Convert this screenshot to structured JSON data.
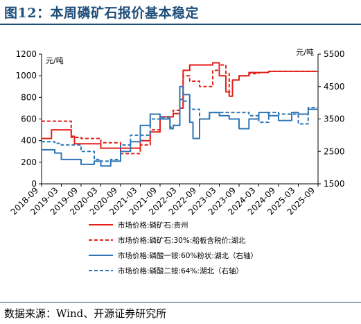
{
  "title": "图12：本周磷矿石报价基本稳定",
  "source": "数据来源：Wind、开源证券研究所",
  "chart_data": {
    "type": "line",
    "x_tick_labels": [
      "2018-09",
      "2019-03",
      "2019-09",
      "2020-03",
      "2020-09",
      "2021-03",
      "2021-09",
      "2022-03",
      "2022-09",
      "2023-03",
      "2023-09",
      "2024-03",
      "2024-09",
      "2025-03",
      "2025-09"
    ],
    "x_range": [
      "2018-09",
      "2025-09"
    ],
    "left_axis": {
      "unit": "元/吨",
      "ylim": [
        0,
        1200
      ],
      "ticks": [
        0,
        200,
        400,
        600,
        800,
        1000,
        1200
      ]
    },
    "right_axis": {
      "unit": "元/吨",
      "ylim": [
        1500,
        5500
      ],
      "ticks": [
        1500,
        2500,
        3500,
        4500,
        5500
      ]
    },
    "legend_position": "bottom",
    "series": [
      {
        "name": "市场价格:磷矿石:贵州",
        "axis": "left",
        "style": "solid",
        "color": "#e32119",
        "x": [
          "2018-09",
          "2018-12",
          "2019-06",
          "2019-07",
          "2020-03",
          "2020-09",
          "2020-12",
          "2021-03",
          "2021-06",
          "2021-09",
          "2021-12",
          "2022-01",
          "2022-03",
          "2022-04",
          "2022-06",
          "2022-09",
          "2022-12",
          "2023-01",
          "2023-03",
          "2023-05",
          "2023-06",
          "2023-07",
          "2023-09",
          "2023-12",
          "2024-03",
          "2024-06",
          "2024-09",
          "2025-03",
          "2025-09"
        ],
        "y": [
          420,
          500,
          440,
          370,
          330,
          330,
          330,
          400,
          480,
          620,
          620,
          650,
          700,
          1050,
          1100,
          1100,
          1100,
          1120,
          1000,
          850,
          810,
          960,
          1000,
          1030,
          1030,
          1040,
          1040,
          1040,
          1040
        ]
      },
      {
        "name": "市场价格:磷矿石:30%:船板含税价:湖北",
        "axis": "left",
        "style": "dashed",
        "color": "#e32119",
        "x": [
          "2018-09",
          "2019-03",
          "2019-06",
          "2019-09",
          "2020-03",
          "2020-09",
          "2021-01",
          "2021-03",
          "2021-06",
          "2021-09",
          "2021-12",
          "2022-01",
          "2022-03",
          "2022-04",
          "2022-06",
          "2022-09",
          "2022-12",
          "2023-01",
          "2023-03",
          "2023-05",
          "2023-06",
          "2023-07",
          "2023-09",
          "2023-12",
          "2024-03",
          "2024-06",
          "2024-09",
          "2025-03",
          "2025-09"
        ],
        "y": [
          580,
          580,
          430,
          420,
          380,
          280,
          280,
          360,
          500,
          600,
          620,
          680,
          700,
          1000,
          950,
          900,
          900,
          1050,
          1100,
          1020,
          850,
          960,
          1000,
          1020,
          1030,
          1040,
          1040,
          1040,
          1040
        ]
      },
      {
        "name": "市场价格:磷酸一铵:60%粉状:湖北（右轴）",
        "axis": "right",
        "style": "solid",
        "color": "#2e75b6",
        "x": [
          "2018-09",
          "2019-01",
          "2019-03",
          "2019-06",
          "2019-09",
          "2020-01",
          "2020-03",
          "2020-06",
          "2020-09",
          "2020-12",
          "2021-03",
          "2021-06",
          "2021-09",
          "2021-12",
          "2022-01",
          "2022-03",
          "2022-04",
          "2022-06",
          "2022-07",
          "2022-09",
          "2022-12",
          "2023-03",
          "2023-06",
          "2023-09",
          "2023-12",
          "2024-03",
          "2024-06",
          "2024-09",
          "2025-01",
          "2025-03",
          "2025-06",
          "2025-09"
        ],
        "y": [
          2550,
          2450,
          2250,
          2250,
          2100,
          2200,
          2050,
          2200,
          2500,
          2800,
          3300,
          3650,
          3500,
          3200,
          3300,
          4500,
          4250,
          3400,
          2900,
          3500,
          3700,
          3600,
          3500,
          3200,
          3500,
          3700,
          3600,
          3450,
          3700,
          3650,
          3800,
          3800
        ]
      },
      {
        "name": "市场价格:磷酸二铵:64%:湖北（右轴）",
        "axis": "right",
        "style": "dashed",
        "color": "#2e75b6",
        "x": [
          "2018-09",
          "2019-01",
          "2019-03",
          "2019-06",
          "2019-09",
          "2020-01",
          "2020-03",
          "2020-06",
          "2020-09",
          "2020-12",
          "2021-03",
          "2021-06",
          "2021-09",
          "2021-12",
          "2022-01",
          "2022-03",
          "2022-04",
          "2022-06",
          "2022-09",
          "2022-12",
          "2023-03",
          "2023-06",
          "2023-09",
          "2023-12",
          "2024-03",
          "2024-06",
          "2024-09",
          "2025-01",
          "2025-03",
          "2025-06",
          "2025-09"
        ],
        "y": [
          2800,
          2750,
          2700,
          2700,
          2500,
          2250,
          2200,
          2250,
          2700,
          3000,
          3000,
          3500,
          3550,
          3250,
          3300,
          4100,
          4050,
          3800,
          3500,
          3700,
          3700,
          3700,
          3700,
          3600,
          3400,
          3700,
          3650,
          3650,
          3350,
          3850,
          3850
        ]
      }
    ]
  }
}
